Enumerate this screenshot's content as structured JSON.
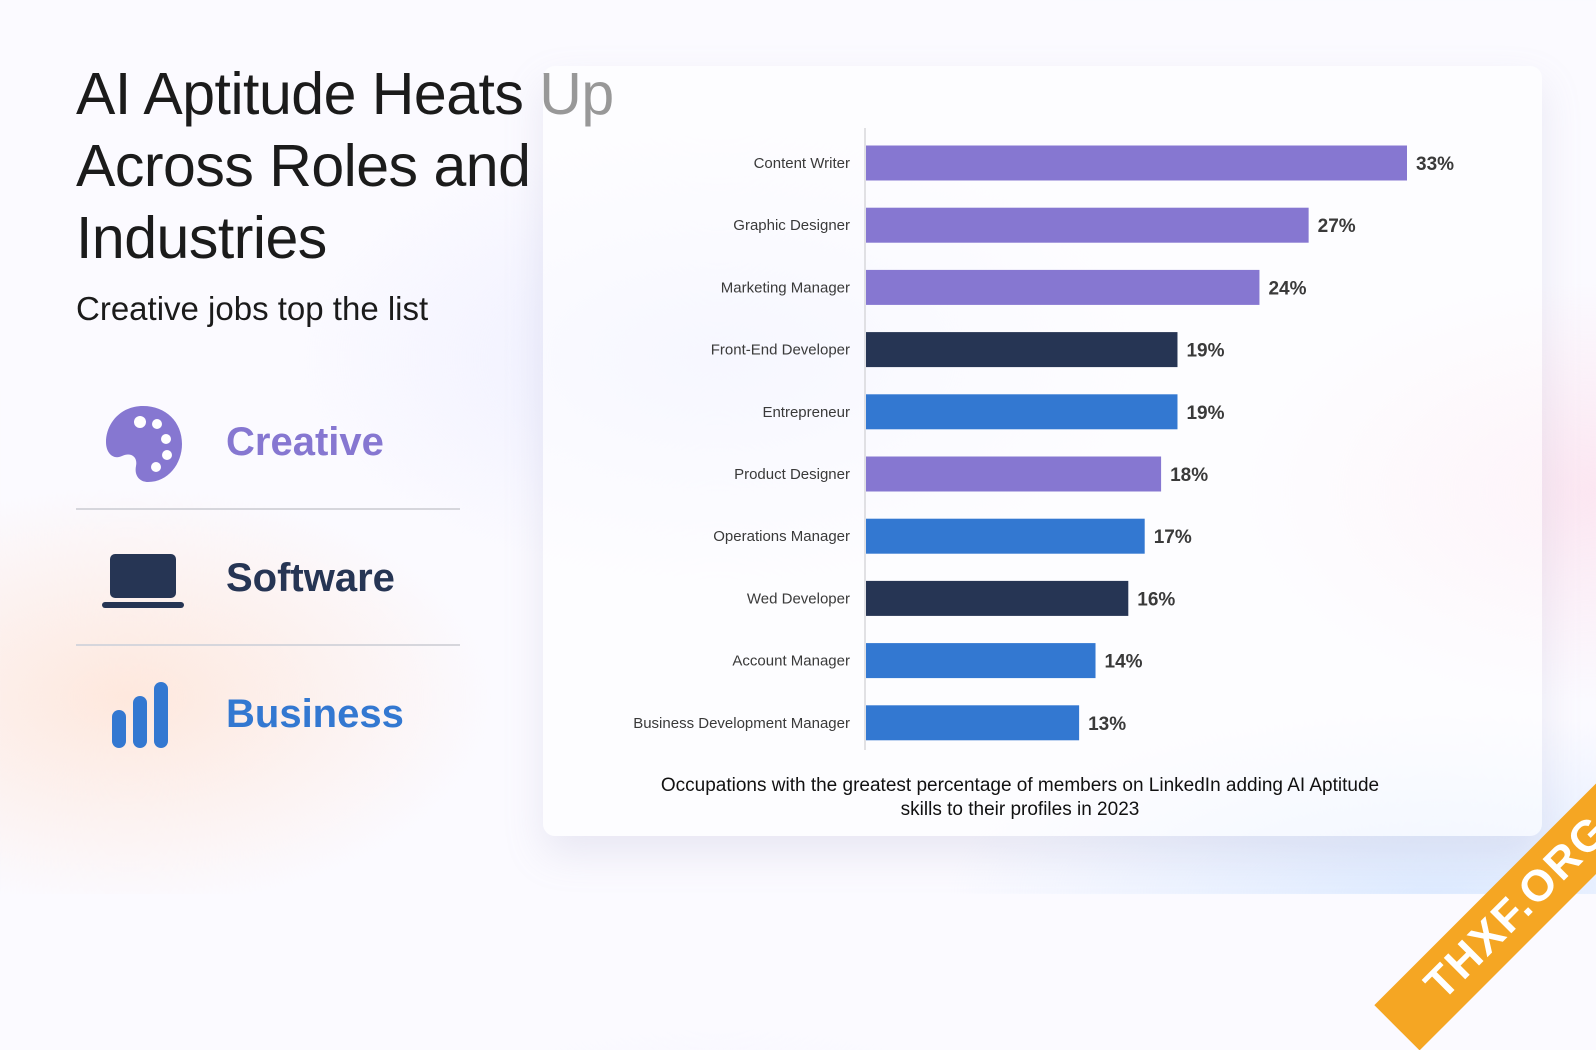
{
  "title": "AI Aptitude Heats Up Across Roles and Industries",
  "subtitle": "Creative jobs top the list",
  "legend": [
    {
      "label": "Creative",
      "icon": "palette-icon",
      "color": "#8677d1"
    },
    {
      "label": "Software",
      "icon": "laptop-icon",
      "color": "#263554"
    },
    {
      "label": "Business",
      "icon": "bar-chart-icon",
      "color": "#3378d1"
    }
  ],
  "chart_data": {
    "type": "bar",
    "orientation": "horizontal",
    "categories": [
      "Content Writer",
      "Graphic Designer",
      "Marketing Manager",
      "Front-End Developer",
      "Entrepreneur",
      "Product Designer",
      "Operations Manager",
      "Wed Developer",
      "Account Manager",
      "Business Development Manager"
    ],
    "values": [
      33,
      27,
      24,
      19,
      19,
      18,
      17,
      16,
      14,
      13
    ],
    "value_labels": [
      "33%",
      "27%",
      "24%",
      "19%",
      "19%",
      "18%",
      "17%",
      "16%",
      "14%",
      "13%"
    ],
    "groups": [
      "Creative",
      "Creative",
      "Creative",
      "Software",
      "Business",
      "Creative",
      "Business",
      "Software",
      "Business",
      "Business"
    ],
    "group_colors": {
      "Creative": "#8677d1",
      "Software": "#263554",
      "Business": "#3378d1"
    },
    "unit": "%",
    "caption": "Occupations with the greatest percentage of members on LinkedIn adding AI Aptitude skills to their profiles in 2023"
  },
  "watermark": "THXF.ORG"
}
